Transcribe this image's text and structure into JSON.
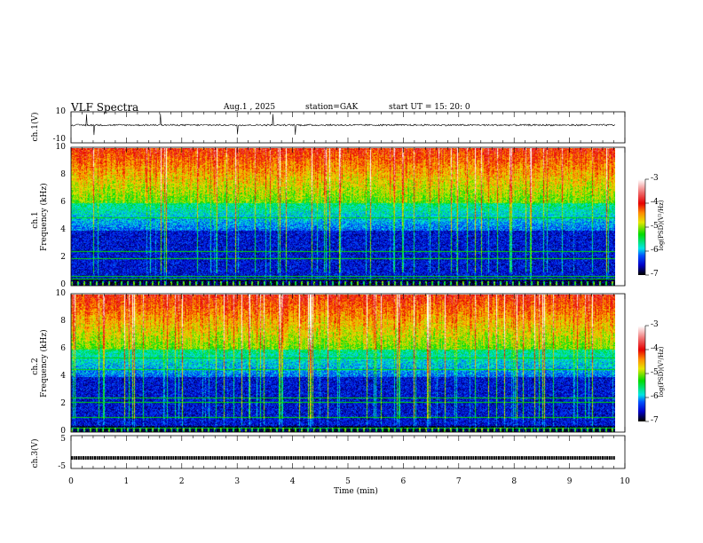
{
  "header": {
    "title": "VLF  Spectra",
    "date": "Aug.1  , 2025",
    "station": "station=GAK",
    "start": "start  UT  =    15: 20: 0"
  },
  "chart_data": [
    {
      "type": "line",
      "name": "ch1-waveform",
      "ylabel": "ch.1(V)",
      "ylim": [
        -10,
        10
      ],
      "yticks": [
        "10",
        "-10"
      ],
      "xlim": [
        0,
        10
      ],
      "data_end_min": 9.82,
      "baseline_v": 1.0
    },
    {
      "type": "heatmap",
      "name": "ch1-spectrogram",
      "ylabel": "ch.1\nFrequency  (kHz)",
      "ylabel_line1": "ch.1",
      "ylabel_line2": "Frequency  (kHz)",
      "ylim": [
        0,
        10
      ],
      "yticks": [
        "0",
        "2",
        "4",
        "6",
        "8",
        "10"
      ],
      "xlim": [
        0,
        10
      ],
      "colorbar": {
        "label": "log(PSD)(V²/Hz)",
        "range": [
          -7,
          -3
        ],
        "ticks": [
          "-3",
          "-4",
          "-5",
          "-6",
          "-7"
        ]
      }
    },
    {
      "type": "heatmap",
      "name": "ch2-spectrogram",
      "ylabel_line1": "ch.2",
      "ylabel_line2": "Frequency  (kHz)",
      "ylim": [
        0,
        10
      ],
      "yticks": [
        "0",
        "2",
        "4",
        "6",
        "8",
        "10"
      ],
      "xlim": [
        0,
        10
      ],
      "colorbar": {
        "label": "log(PSD)(V²/Hz)",
        "range": [
          -7,
          -3
        ],
        "ticks": [
          "-3",
          "-4",
          "-5",
          "-6",
          "-7"
        ]
      }
    },
    {
      "type": "line",
      "name": "ch3-waveform",
      "ylabel": "ch.3(V)",
      "ylim": [
        -5,
        5
      ],
      "yticks": [
        "5",
        "-5"
      ],
      "xlim": [
        0,
        10
      ],
      "constant_v": -1.5
    }
  ],
  "xaxis": {
    "label": "Time  (min)",
    "ticks": [
      "0",
      "1",
      "2",
      "3",
      "4",
      "5",
      "6",
      "7",
      "8",
      "9",
      "10"
    ]
  }
}
